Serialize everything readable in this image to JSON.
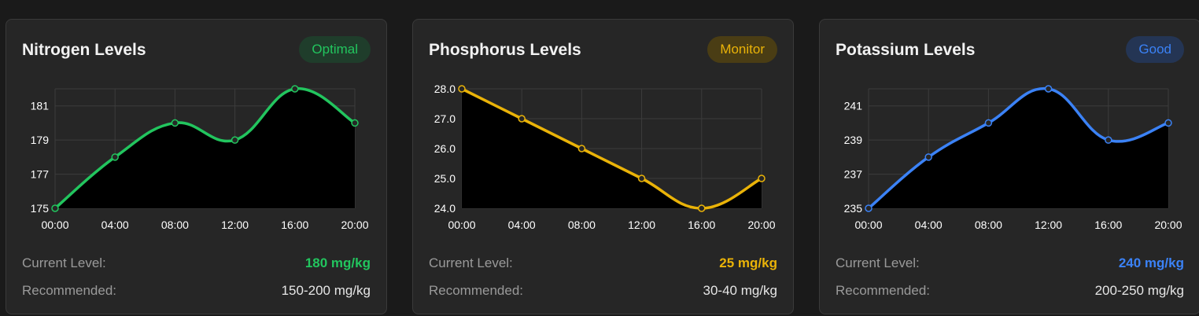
{
  "cards": [
    {
      "title": "Nitrogen Levels",
      "badge": "Optimal",
      "color": "#22c55e",
      "badge_bg": "#1f3d2b",
      "current_label": "Current Level:",
      "current_value": "180 mg/kg",
      "recommended_label": "Recommended:",
      "recommended_value": "150-200 mg/kg",
      "chart_data": {
        "type": "line",
        "categories": [
          "00:00",
          "04:00",
          "08:00",
          "12:00",
          "16:00",
          "20:00"
        ],
        "values": [
          175,
          178,
          180,
          179,
          182,
          180
        ],
        "ylim": [
          175,
          182
        ],
        "yticks": [
          175,
          177,
          179,
          181
        ],
        "ytick_labels": [
          "175",
          "177",
          "179",
          "181"
        ],
        "grid": true
      }
    },
    {
      "title": "Phosphorus Levels",
      "badge": "Monitor",
      "color": "#eab308",
      "badge_bg": "#4a3d14",
      "current_label": "Current Level:",
      "current_value": "25 mg/kg",
      "recommended_label": "Recommended:",
      "recommended_value": "30-40 mg/kg",
      "chart_data": {
        "type": "line",
        "categories": [
          "00:00",
          "04:00",
          "08:00",
          "12:00",
          "16:00",
          "20:00"
        ],
        "values": [
          28,
          27,
          26,
          25,
          24,
          25
        ],
        "ylim": [
          24,
          28
        ],
        "yticks": [
          24,
          25,
          26,
          27,
          28
        ],
        "ytick_labels": [
          "24.0",
          "25.0",
          "26.0",
          "27.0",
          "28.0"
        ],
        "grid": true
      }
    },
    {
      "title": "Potassium Levels",
      "badge": "Good",
      "color": "#3b82f6",
      "badge_bg": "#243554",
      "current_label": "Current Level:",
      "current_value": "240 mg/kg",
      "recommended_label": "Recommended:",
      "recommended_value": "200-250 mg/kg",
      "chart_data": {
        "type": "line",
        "categories": [
          "00:00",
          "04:00",
          "08:00",
          "12:00",
          "16:00",
          "20:00"
        ],
        "values": [
          235,
          238,
          240,
          242,
          239,
          240
        ],
        "ylim": [
          235,
          242
        ],
        "yticks": [
          235,
          237,
          239,
          241
        ],
        "ytick_labels": [
          "235",
          "237",
          "239",
          "241"
        ],
        "grid": true
      }
    }
  ]
}
